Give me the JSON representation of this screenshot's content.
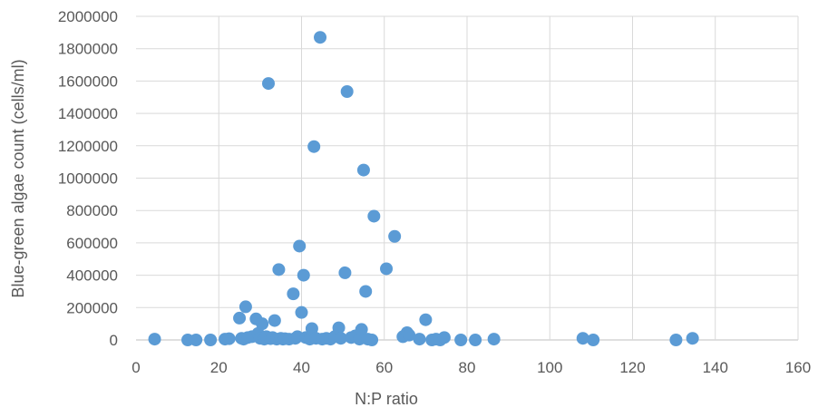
{
  "chart_data": {
    "type": "scatter",
    "title": "",
    "xlabel": "N:P ratio",
    "ylabel": "Blue-green algae count (cells/ml)",
    "xlim": [
      0,
      160
    ],
    "ylim": [
      0,
      2000000
    ],
    "x_ticks": [
      0,
      20,
      40,
      60,
      80,
      100,
      120,
      140,
      160
    ],
    "y_ticks": [
      0,
      200000,
      400000,
      600000,
      800000,
      1000000,
      1200000,
      1400000,
      1600000,
      1800000,
      2000000
    ],
    "x_tick_labels": [
      "0",
      "20",
      "40",
      "60",
      "80",
      "100",
      "120",
      "140",
      "160"
    ],
    "y_tick_labels": [
      "0",
      "200000",
      "400000",
      "600000",
      "800000",
      "1000000",
      "1200000",
      "1400000",
      "1600000",
      "1800000",
      "2000000"
    ],
    "grid": true,
    "legend": "none",
    "marker_color": "#5b9bd5",
    "series": [
      {
        "points": [
          [
            4.5,
            5000
          ],
          [
            12.5,
            0
          ],
          [
            14.5,
            0
          ],
          [
            18,
            0
          ],
          [
            21.5,
            5000
          ],
          [
            22.5,
            8000
          ],
          [
            25,
            135000
          ],
          [
            25.5,
            10000
          ],
          [
            26,
            5000
          ],
          [
            26.5,
            205000
          ],
          [
            27,
            15000
          ],
          [
            28,
            20000
          ],
          [
            29,
            130000
          ],
          [
            29.5,
            40000
          ],
          [
            30,
            10000
          ],
          [
            30.5,
            100000
          ],
          [
            31,
            5000
          ],
          [
            31.5,
            20000
          ],
          [
            32,
            1585000
          ],
          [
            32.5,
            8000
          ],
          [
            33,
            15000
          ],
          [
            33.5,
            120000
          ],
          [
            34,
            5000
          ],
          [
            34.5,
            435000
          ],
          [
            35,
            10000
          ],
          [
            35.5,
            5000
          ],
          [
            36,
            8000
          ],
          [
            37,
            5000
          ],
          [
            38,
            285000
          ],
          [
            38.5,
            10000
          ],
          [
            39,
            20000
          ],
          [
            39.5,
            580000
          ],
          [
            40,
            170000
          ],
          [
            40.5,
            400000
          ],
          [
            41,
            15000
          ],
          [
            42,
            5000
          ],
          [
            42.5,
            70000
          ],
          [
            43,
            1195000
          ],
          [
            43.5,
            10000
          ],
          [
            44.5,
            1870000
          ],
          [
            45,
            5000
          ],
          [
            46,
            10000
          ],
          [
            47,
            5000
          ],
          [
            48,
            20000
          ],
          [
            49,
            75000
          ],
          [
            49.5,
            10000
          ],
          [
            50.5,
            415000
          ],
          [
            51,
            1535000
          ],
          [
            52,
            15000
          ],
          [
            53,
            25000
          ],
          [
            54,
            5000
          ],
          [
            54.5,
            65000
          ],
          [
            55,
            1050000
          ],
          [
            55.5,
            300000
          ],
          [
            56,
            5000
          ],
          [
            57,
            0
          ],
          [
            57.5,
            765000
          ],
          [
            60.5,
            440000
          ],
          [
            62.5,
            640000
          ],
          [
            64.5,
            20000
          ],
          [
            65.5,
            45000
          ],
          [
            66,
            30000
          ],
          [
            68.5,
            5000
          ],
          [
            70,
            125000
          ],
          [
            71.5,
            0
          ],
          [
            72.5,
            5000
          ],
          [
            73.5,
            0
          ],
          [
            74.5,
            15000
          ],
          [
            78.5,
            0
          ],
          [
            82,
            0
          ],
          [
            86.5,
            5000
          ],
          [
            108,
            10000
          ],
          [
            110.5,
            0
          ],
          [
            130.5,
            0
          ],
          [
            134.5,
            10000
          ]
        ]
      }
    ]
  }
}
